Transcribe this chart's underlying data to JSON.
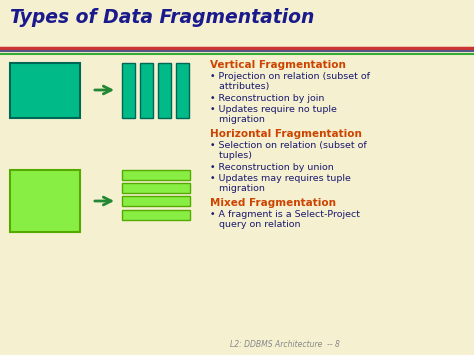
{
  "title": "Types of Data Fragmentation",
  "title_color": "#1a1a8c",
  "title_fontsize": 13.5,
  "bg_color": "#f5f0d0",
  "green_dark": "#00bb88",
  "green_light": "#88ee44",
  "arrow_color": "#228833",
  "section_title_color": "#cc4400",
  "body_text_color": "#1a1a6e",
  "footer_color": "#888888",
  "vertical_frag": {
    "title": "Vertical Fragmentation",
    "bullets": [
      "Projection on relation (subset of\n   attributes)",
      "Reconstruction by join",
      "Updates require no tuple\n   migration"
    ]
  },
  "horizontal_frag": {
    "title": "Horizontal Fragmentation",
    "bullets": [
      "Selection on relation (subset of\n   tuples)",
      "Reconstruction by union",
      "Updates may requires tuple\n   migration"
    ]
  },
  "mixed_frag": {
    "title": "Mixed Fragmentation",
    "bullets": [
      "A fragment is a Select-Project\n   query on relation"
    ]
  },
  "footer_text": "L2: DDBMS Architecture  -- 8"
}
